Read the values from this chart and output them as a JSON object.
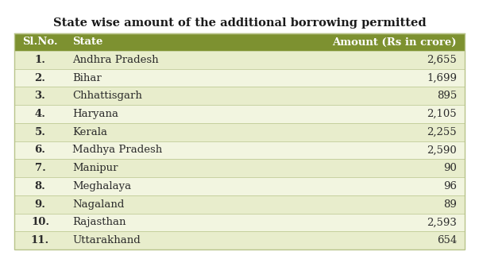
{
  "title": "State wise amount of the additional borrowing permitted",
  "header": [
    "Sl.No.",
    "State",
    "Amount (Rs in crore)"
  ],
  "rows": [
    [
      "1.",
      "Andhra Pradesh",
      "2,655"
    ],
    [
      "2.",
      "Bihar",
      "1,699"
    ],
    [
      "3.",
      "Chhattisgarh",
      "895"
    ],
    [
      "4.",
      "Haryana",
      "2,105"
    ],
    [
      "5.",
      "Kerala",
      "2,255"
    ],
    [
      "6.",
      "Madhya Pradesh",
      "2,590"
    ],
    [
      "7.",
      "Manipur",
      "90"
    ],
    [
      "8.",
      "Meghalaya",
      "96"
    ],
    [
      "9.",
      "Nagaland",
      "89"
    ],
    [
      "10.",
      "Rajasthan",
      "2,593"
    ],
    [
      "11.",
      "Uttarakhand",
      "654"
    ]
  ],
  "header_bg": "#7d9130",
  "header_text_color": "#ffffff",
  "row_bg_odd": "#e8edcc",
  "row_bg_even": "#f2f5e0",
  "text_color": "#2c2c2c",
  "title_color": "#1a1a1a",
  "border_color": "#b8c48a",
  "outer_bg": "#ffffff",
  "title_fontsize": 10.5,
  "header_fontsize": 9.5,
  "row_fontsize": 9.5
}
